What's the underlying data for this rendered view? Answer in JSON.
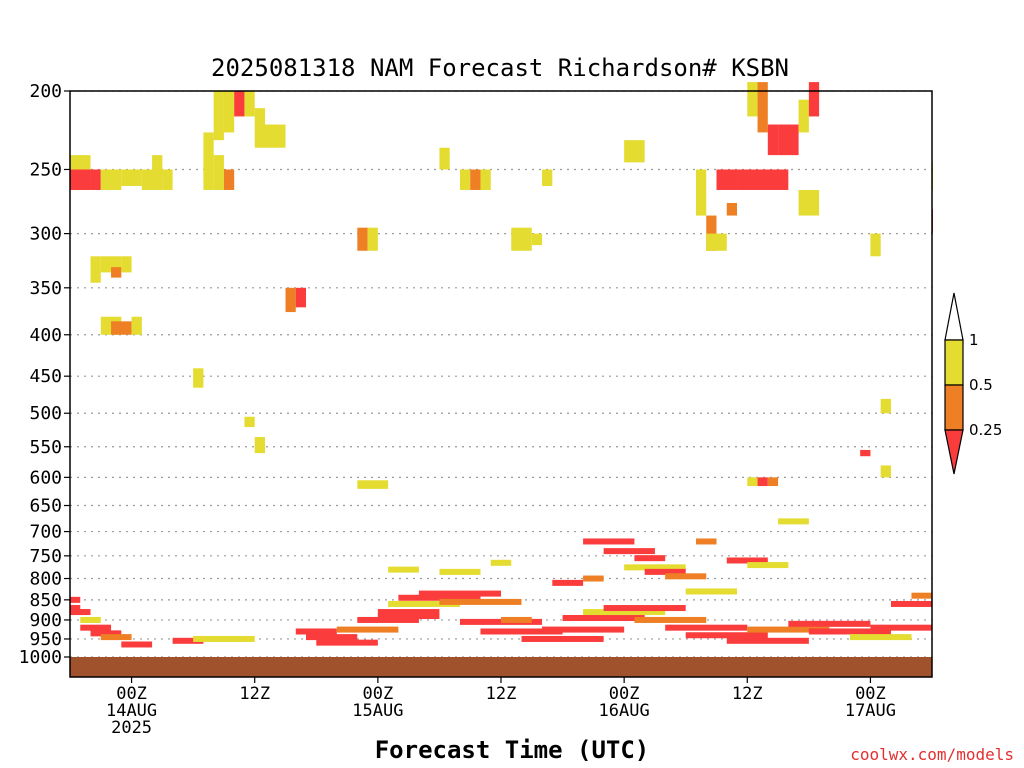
{
  "chart_data": {
    "type": "heatmap",
    "title": "2025081318 NAM Forecast Richardson# KSBN",
    "xlabel": "Forecast Time (UTC)",
    "credit": "coolwx.com/models",
    "y_scale": "log-pressure",
    "ylim_hPa": [
      1000,
      200
    ],
    "y_ticks": [
      200,
      250,
      300,
      350,
      400,
      450,
      500,
      550,
      600,
      650,
      700,
      750,
      800,
      850,
      900,
      950,
      1000
    ],
    "xlim_forecast_hours": [
      0,
      84
    ],
    "x_ticks": [
      {
        "hour": 6,
        "lines": [
          "00Z",
          "14AUG",
          "2025"
        ]
      },
      {
        "hour": 18,
        "lines": [
          "12Z"
        ]
      },
      {
        "hour": 30,
        "lines": [
          "00Z",
          "15AUG"
        ]
      },
      {
        "hour": 42,
        "lines": [
          "12Z"
        ]
      },
      {
        "hour": 54,
        "lines": [
          "00Z",
          "16AUG"
        ]
      },
      {
        "hour": 66,
        "lines": [
          "12Z"
        ]
      },
      {
        "hour": 78,
        "lines": [
          "00Z",
          "17AUG"
        ]
      }
    ],
    "grid": "dotted horizontal",
    "legend": {
      "placement": "right",
      "boundaries": [
        "1",
        "0.5",
        "0.25"
      ],
      "bins": [
        {
          "range": "0.5-1",
          "color": "#e4dc30"
        },
        {
          "range": "0.25-0.5",
          "color": "#ee7f24"
        },
        {
          "range": "<0.25",
          "color": "#fa3c3c"
        }
      ],
      "above_color": "#ffffff",
      "below_color": "#fa3c3c"
    },
    "ground_color": "#a0522d",
    "cells_note": "each cell: [forecast_hour_start, forecast_hour_end, pressure_top_hPa, pressure_bottom_hPa, category] where category 0 = 0.5-1, 1 = 0.25-0.5, 2 = <0.25",
    "cells": [
      [
        0,
        2,
        240,
        265,
        0
      ],
      [
        0,
        2,
        250,
        265,
        2
      ],
      [
        2,
        3,
        250,
        265,
        2
      ],
      [
        3,
        5,
        250,
        265,
        0
      ],
      [
        5,
        7,
        250,
        262,
        0
      ],
      [
        7,
        9,
        250,
        265,
        0
      ],
      [
        8,
        9,
        240,
        255,
        0
      ],
      [
        9,
        10,
        250,
        265,
        0
      ],
      [
        2,
        3,
        320,
        345,
        0
      ],
      [
        3,
        5,
        320,
        335,
        0
      ],
      [
        4,
        5,
        330,
        340,
        1
      ],
      [
        5,
        6,
        320,
        335,
        0
      ],
      [
        3,
        5,
        380,
        400,
        0
      ],
      [
        4,
        6,
        385,
        400,
        1
      ],
      [
        6,
        7,
        380,
        400,
        0
      ],
      [
        12,
        13,
        440,
        465,
        0
      ],
      [
        14,
        15,
        200,
        230,
        0
      ],
      [
        15,
        16,
        200,
        225,
        0
      ],
      [
        16,
        17,
        200,
        215,
        2
      ],
      [
        17,
        18,
        200,
        215,
        0
      ],
      [
        18,
        19,
        210,
        235,
        0
      ],
      [
        13,
        14,
        225,
        265,
        0
      ],
      [
        14,
        15,
        240,
        265,
        0
      ],
      [
        15,
        16,
        250,
        265,
        1
      ],
      [
        19,
        21,
        220,
        235,
        0
      ],
      [
        21,
        22,
        350,
        375,
        1
      ],
      [
        22,
        23,
        350,
        370,
        2
      ],
      [
        17,
        18,
        505,
        520,
        0
      ],
      [
        18,
        19,
        535,
        560,
        0
      ],
      [
        28,
        29,
        295,
        315,
        1
      ],
      [
        29,
        30,
        295,
        315,
        0
      ],
      [
        28,
        31,
        605,
        620,
        0
      ],
      [
        36,
        37,
        235,
        250,
        0
      ],
      [
        38,
        39,
        250,
        265,
        0
      ],
      [
        39,
        40,
        250,
        265,
        1
      ],
      [
        40,
        41,
        250,
        265,
        0
      ],
      [
        43,
        45,
        295,
        315,
        0
      ],
      [
        45,
        46,
        300,
        310,
        0
      ],
      [
        46,
        47,
        250,
        262,
        0
      ],
      [
        54,
        56,
        230,
        245,
        0
      ],
      [
        61,
        62,
        250,
        285,
        0
      ],
      [
        62,
        63,
        285,
        315,
        1
      ],
      [
        62,
        64,
        300,
        315,
        0
      ],
      [
        63,
        65,
        250,
        265,
        2
      ],
      [
        65,
        70,
        250,
        265,
        2
      ],
      [
        64,
        65,
        275,
        285,
        1
      ],
      [
        66,
        67,
        195,
        215,
        0
      ],
      [
        67,
        68,
        195,
        225,
        1
      ],
      [
        68,
        69,
        220,
        240,
        2
      ],
      [
        69,
        71,
        220,
        240,
        2
      ],
      [
        71,
        72,
        205,
        225,
        0
      ],
      [
        72,
        73,
        195,
        215,
        2
      ],
      [
        71,
        73,
        265,
        285,
        0
      ],
      [
        66,
        67,
        600,
        615,
        0
      ],
      [
        67,
        68,
        600,
        615,
        2
      ],
      [
        68,
        69,
        600,
        615,
        1
      ],
      [
        78,
        79,
        300,
        320,
        0
      ],
      [
        79,
        80,
        480,
        500,
        0
      ],
      [
        79,
        80,
        580,
        600,
        0
      ],
      [
        77,
        78,
        555,
        565,
        2
      ],
      [
        84,
        85,
        245,
        265,
        0
      ],
      [
        84,
        85,
        280,
        300,
        2
      ]
    ],
    "pbl_layers_note": "near-surface unstable layers shown as thin bands: [forecast_hour_start, forecast_hour_end, pressure_hPa, category]",
    "pbl_layers": [
      [
        0,
        1,
        850,
        2
      ],
      [
        0,
        1,
        870,
        2
      ],
      [
        0,
        2,
        880,
        2
      ],
      [
        1,
        3,
        900,
        0
      ],
      [
        1,
        4,
        920,
        2
      ],
      [
        2,
        5,
        935,
        2
      ],
      [
        3,
        6,
        945,
        1
      ],
      [
        5,
        8,
        965,
        2
      ],
      [
        10,
        13,
        955,
        2
      ],
      [
        12,
        18,
        950,
        0
      ],
      [
        22,
        26,
        930,
        2
      ],
      [
        23,
        28,
        945,
        2
      ],
      [
        24,
        30,
        960,
        2
      ],
      [
        26,
        32,
        925,
        1
      ],
      [
        28,
        34,
        900,
        2
      ],
      [
        30,
        36,
        880,
        2
      ],
      [
        31,
        38,
        860,
        0
      ],
      [
        32,
        40,
        845,
        2
      ],
      [
        34,
        42,
        835,
        2
      ],
      [
        36,
        44,
        855,
        1
      ],
      [
        38,
        46,
        905,
        2
      ],
      [
        40,
        48,
        930,
        2
      ],
      [
        44,
        52,
        950,
        2
      ],
      [
        46,
        54,
        925,
        2
      ],
      [
        48,
        56,
        895,
        2
      ],
      [
        50,
        58,
        880,
        0
      ],
      [
        52,
        60,
        870,
        2
      ],
      [
        55,
        62,
        900,
        1
      ],
      [
        58,
        66,
        920,
        2
      ],
      [
        60,
        68,
        940,
        2
      ],
      [
        64,
        72,
        955,
        2
      ],
      [
        66,
        74,
        925,
        1
      ],
      [
        70,
        78,
        910,
        2
      ],
      [
        72,
        80,
        930,
        2
      ],
      [
        76,
        82,
        945,
        0
      ],
      [
        78,
        84,
        920,
        2
      ],
      [
        80,
        84,
        860,
        2
      ],
      [
        82,
        84,
        840,
        1
      ],
      [
        50,
        55,
        720,
        2
      ],
      [
        52,
        57,
        740,
        2
      ],
      [
        55,
        58,
        755,
        2
      ],
      [
        54,
        60,
        775,
        0
      ],
      [
        56,
        60,
        785,
        2
      ],
      [
        58,
        62,
        795,
        1
      ],
      [
        61,
        63,
        720,
        1
      ],
      [
        64,
        68,
        760,
        2
      ],
      [
        66,
        70,
        770,
        0
      ],
      [
        69,
        72,
        680,
        0
      ],
      [
        31,
        34,
        780,
        0
      ],
      [
        36,
        40,
        785,
        0
      ],
      [
        41,
        43,
        765,
        0
      ],
      [
        47,
        50,
        810,
        2
      ],
      [
        50,
        52,
        800,
        1
      ],
      [
        60,
        65,
        830,
        0
      ],
      [
        30,
        36,
        890,
        2
      ],
      [
        42,
        45,
        900,
        1
      ]
    ]
  }
}
